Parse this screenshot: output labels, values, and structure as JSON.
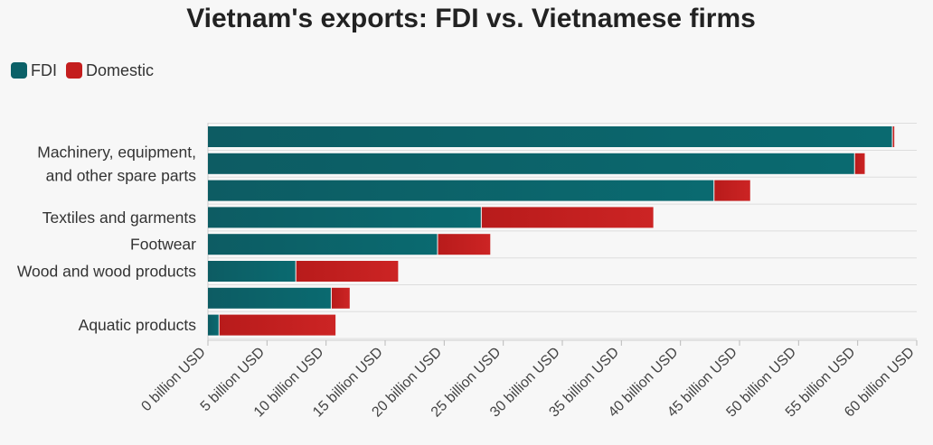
{
  "chart_data": {
    "type": "bar",
    "orientation": "horizontal",
    "stacked": true,
    "title": "Vietnam's exports: FDI vs. Vietnamese firms",
    "xlabel": "",
    "ylabel": "",
    "xlim": [
      0,
      60
    ],
    "legend_position": "top-left",
    "grid": true,
    "categories": [
      "",
      "Machinery, equipment, and other spare parts",
      "",
      "Textiles and garments",
      "Footwear",
      "Wood and wood products",
      "",
      "Aquatic products"
    ],
    "series": [
      {
        "name": "FDI",
        "color": "#0b6168",
        "values": [
          57.9,
          54.7,
          42.8,
          23.1,
          19.4,
          7.4,
          10.4,
          0.9
        ]
      },
      {
        "name": "Domestic",
        "color": "#c41e1e",
        "values": [
          0.2,
          0.9,
          3.1,
          14.6,
          4.5,
          8.7,
          1.6,
          9.9
        ]
      }
    ],
    "x_tick_values": [
      0,
      5,
      10,
      15,
      20,
      25,
      30,
      35,
      40,
      45,
      50,
      55,
      60
    ],
    "x_tick_labels": [
      "0 billion USD",
      "5 billion USD",
      "10 billion USD",
      "15 billion USD",
      "20 billion USD",
      "25 billion USD",
      "30 billion USD",
      "35 billion USD",
      "40 billion USD",
      "45 billion USD",
      "50 billion USD",
      "55 billion USD",
      "60 billion USD"
    ]
  }
}
